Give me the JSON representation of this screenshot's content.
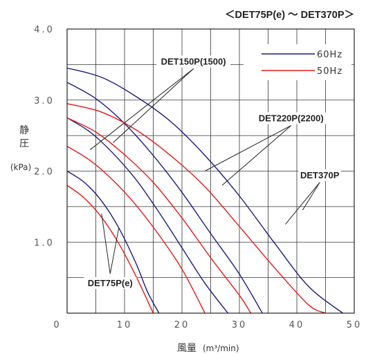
{
  "chart_data": {
    "type": "line",
    "title": "＜DET75P(e) ～ DET370P＞",
    "ylabel": [
      "静",
      "圧"
    ],
    "yunit": "(kPa)",
    "xlabel_main": "風量",
    "xlabel_unit": "(m³/min)",
    "xlim": [
      0,
      50
    ],
    "ylim": [
      0,
      4.0
    ],
    "x_ticks": [
      {
        "value": 0,
        "label": "0"
      },
      {
        "value": 10,
        "label": "10"
      },
      {
        "value": 20,
        "label": "20"
      },
      {
        "value": 30,
        "label": "30"
      },
      {
        "value": 40,
        "label": "40"
      },
      {
        "value": 50,
        "label": "50"
      }
    ],
    "y_ticks": [
      {
        "value": 1.0,
        "label": "1.0"
      },
      {
        "value": 2.0,
        "label": "2.0"
      },
      {
        "value": 3.0,
        "label": "3.0"
      },
      {
        "value": 4.0,
        "label": "4.0"
      }
    ],
    "grid": true,
    "legend_position": "top-right",
    "legend": [
      {
        "label": "60Hz",
        "color": "#1a1a7a"
      },
      {
        "label": "50Hz",
        "color": "#e01a1a"
      }
    ],
    "series": [
      {
        "model": "DET75P(e)",
        "freq": "60Hz",
        "color": "#1a1a7a",
        "points": [
          [
            0,
            2.0
          ],
          [
            3,
            1.84
          ],
          [
            6,
            1.58
          ],
          [
            9,
            1.2
          ],
          [
            12,
            0.7
          ],
          [
            14,
            0.3
          ],
          [
            16,
            0
          ]
        ]
      },
      {
        "model": "DET75P(e)",
        "freq": "50Hz",
        "color": "#e01a1a",
        "points": [
          [
            0,
            1.8
          ],
          [
            3,
            1.62
          ],
          [
            6,
            1.35
          ],
          [
            9,
            0.98
          ],
          [
            12,
            0.52
          ],
          [
            15,
            0
          ]
        ]
      },
      {
        "model": "DET150P(1500)",
        "freq": "60Hz",
        "color": "#1a1a7a",
        "points": [
          [
            0,
            2.75
          ],
          [
            4,
            2.55
          ],
          [
            8,
            2.25
          ],
          [
            12,
            1.88
          ],
          [
            16,
            1.42
          ],
          [
            20,
            0.92
          ],
          [
            24,
            0.42
          ],
          [
            28,
            0
          ]
        ]
      },
      {
        "model": "DET150P(1500)",
        "freq": "50Hz",
        "color": "#e01a1a",
        "points": [
          [
            0,
            2.35
          ],
          [
            4,
            2.15
          ],
          [
            8,
            1.87
          ],
          [
            12,
            1.52
          ],
          [
            16,
            1.1
          ],
          [
            20,
            0.62
          ],
          [
            24,
            0
          ]
        ]
      },
      {
        "model": "DET220P(2200)",
        "freq": "60Hz",
        "color": "#1a1a7a",
        "points": [
          [
            0,
            3.25
          ],
          [
            5,
            3.02
          ],
          [
            10,
            2.67
          ],
          [
            15,
            2.22
          ],
          [
            20,
            1.7
          ],
          [
            25,
            1.12
          ],
          [
            30,
            0.55
          ],
          [
            34,
            0
          ]
        ]
      },
      {
        "model": "DET220P(2200)",
        "freq": "50Hz",
        "color": "#e01a1a",
        "points": [
          [
            0,
            2.75
          ],
          [
            5,
            2.55
          ],
          [
            10,
            2.23
          ],
          [
            15,
            1.84
          ],
          [
            20,
            1.34
          ],
          [
            25,
            0.78
          ],
          [
            30,
            0.25
          ],
          [
            32,
            0
          ]
        ]
      },
      {
        "model": "DET370P",
        "freq": "60Hz",
        "color": "#1a1a7a",
        "points": [
          [
            0,
            3.45
          ],
          [
            6,
            3.32
          ],
          [
            12,
            3.05
          ],
          [
            18,
            2.7
          ],
          [
            24,
            2.22
          ],
          [
            30,
            1.65
          ],
          [
            36,
            1.0
          ],
          [
            42,
            0.38
          ],
          [
            48,
            0
          ]
        ]
      },
      {
        "model": "DET370P",
        "freq": "50Hz",
        "color": "#e01a1a",
        "points": [
          [
            0,
            2.95
          ],
          [
            6,
            2.83
          ],
          [
            12,
            2.58
          ],
          [
            18,
            2.22
          ],
          [
            24,
            1.78
          ],
          [
            30,
            1.22
          ],
          [
            36,
            0.65
          ],
          [
            42,
            0.12
          ],
          [
            45,
            0
          ]
        ]
      }
    ],
    "annotations": [
      {
        "text": "DET150P(1500)",
        "x": 22,
        "y": 3.5,
        "pointers": [
          [
            4,
            2.3
          ],
          [
            8,
            2.4
          ]
        ]
      },
      {
        "text": "DET220P(2200)",
        "x": 39,
        "y": 2.7,
        "pointers": [
          [
            24,
            2.0
          ],
          [
            27,
            1.8
          ]
        ]
      },
      {
        "text": "DET370P",
        "x": 44,
        "y": 1.9,
        "pointers": [
          [
            38,
            1.25
          ],
          [
            41,
            1.45
          ]
        ]
      },
      {
        "text": "DET75P(e)",
        "x": 7.5,
        "y": 0.38,
        "pointers": [
          [
            6,
            1.4
          ],
          [
            9,
            1.2
          ]
        ]
      }
    ]
  }
}
